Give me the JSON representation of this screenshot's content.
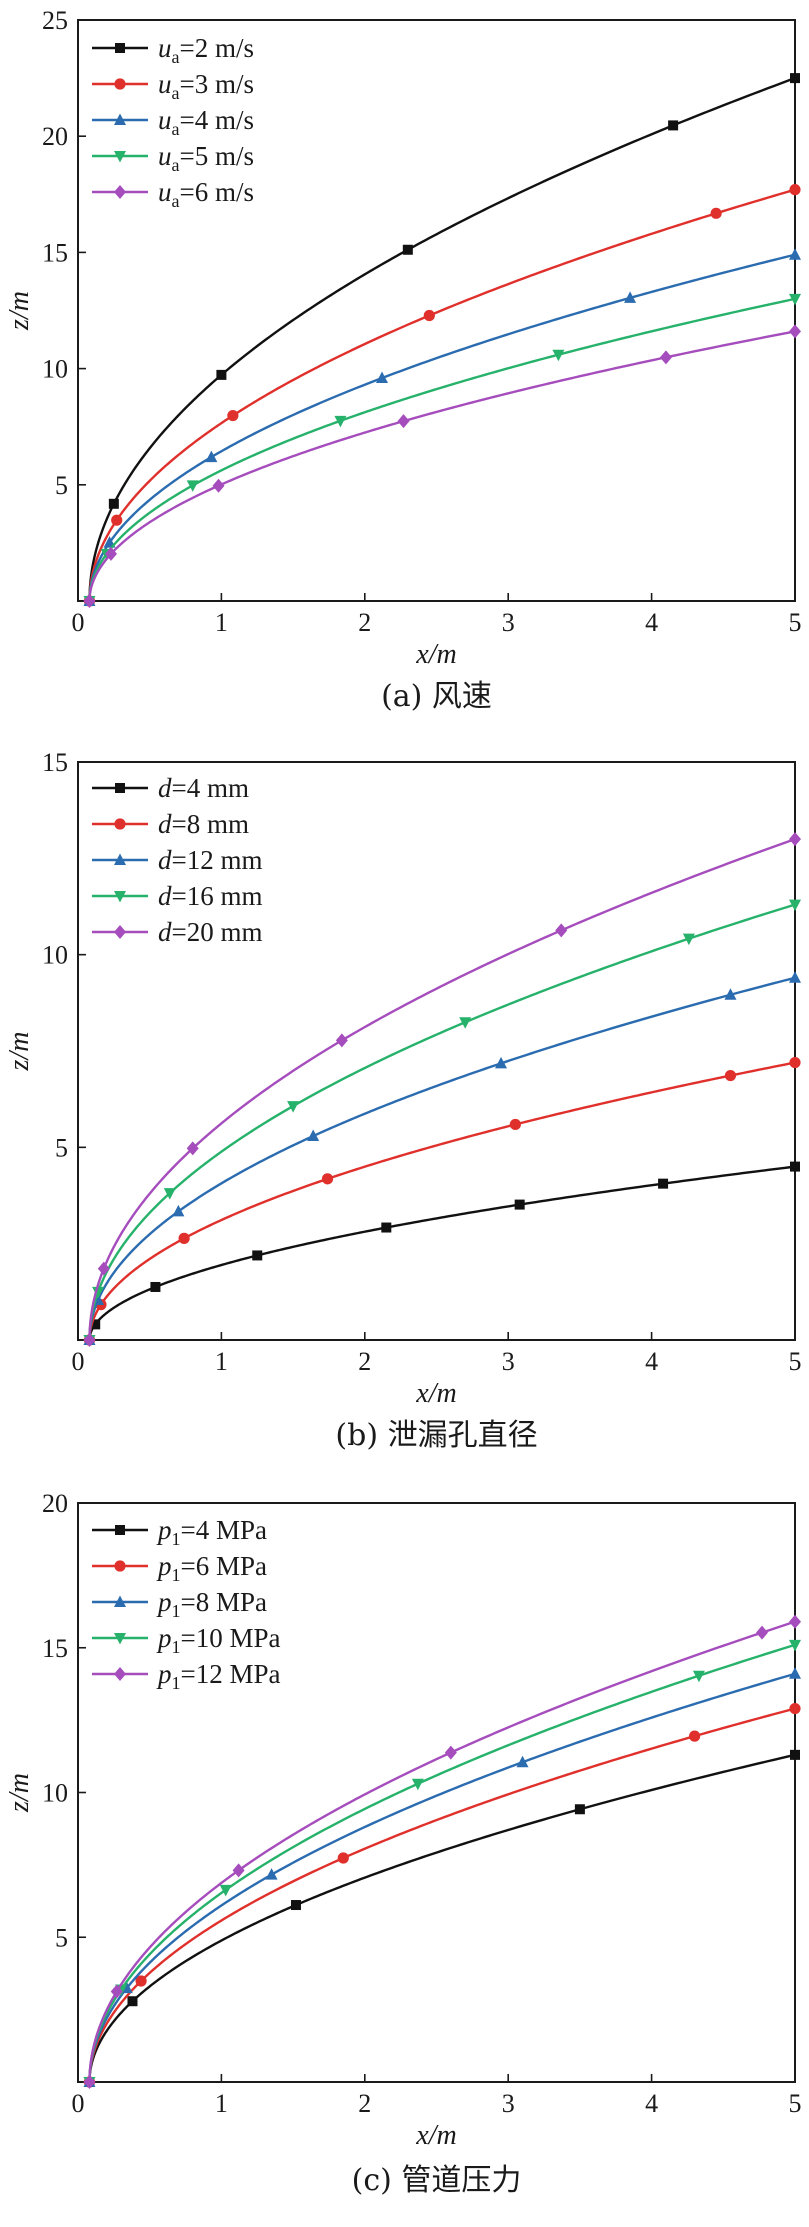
{
  "chart_data": [
    {
      "type": "line",
      "caption": "(a) 风速",
      "xlabel": "x/m",
      "ylabel": "z/m",
      "xlim": [
        0,
        5
      ],
      "ylim": [
        0,
        25
      ],
      "xticks": [
        0,
        1,
        2,
        3,
        4,
        5
      ],
      "yticks": [
        5,
        10,
        15,
        20,
        25
      ],
      "y0_label": "0",
      "legend_position": "top-left",
      "series": [
        {
          "name": "ua=2 m/s",
          "legend": {
            "var": "u",
            "sub": "a",
            "rest": "=2 m/s"
          },
          "color": "#111111",
          "marker": "square",
          "end": 22.5,
          "markers_x": [
            0.25,
            1.0,
            2.3,
            4.15,
            5.0
          ]
        },
        {
          "name": "ua=3 m/s",
          "legend": {
            "var": "u",
            "sub": "a",
            "rest": "=3 m/s"
          },
          "color": "#e0302c",
          "marker": "circle",
          "end": 17.7,
          "markers_x": [
            0.27,
            1.08,
            2.45,
            4.45,
            5.0
          ]
        },
        {
          "name": "ua=4 m/s",
          "legend": {
            "var": "u",
            "sub": "a",
            "rest": "=4 m/s"
          },
          "color": "#2b6cb0",
          "marker": "triangle-up",
          "end": 14.9,
          "markers_x": [
            0.22,
            0.93,
            2.12,
            3.85,
            5.0
          ]
        },
        {
          "name": "ua=5 m/s",
          "legend": {
            "var": "u",
            "sub": "a",
            "rest": "=5 m/s"
          },
          "color": "#27b26b",
          "marker": "triangle-down",
          "end": 13.0,
          "markers_x": [
            0.2,
            0.8,
            1.83,
            3.35,
            5.0
          ]
        },
        {
          "name": "ua=6 m/s",
          "legend": {
            "var": "u",
            "sub": "a",
            "rest": "=6 m/s"
          },
          "color": "#a64dbd",
          "marker": "diamond",
          "end": 11.6,
          "markers_x": [
            0.23,
            0.98,
            2.27,
            4.1,
            5.0
          ]
        }
      ]
    },
    {
      "type": "line",
      "caption": "(b) 泄漏孔直径",
      "xlabel": "x/m",
      "ylabel": "z/m",
      "xlim": [
        0,
        5
      ],
      "ylim": [
        0,
        15
      ],
      "xticks": [
        0,
        1,
        2,
        3,
        4,
        5
      ],
      "yticks": [
        5,
        10,
        15
      ],
      "y0_label": "0",
      "legend_position": "top-left",
      "series": [
        {
          "name": "d=4 mm",
          "legend": {
            "var": "d",
            "sub": "",
            "rest": "=4 mm"
          },
          "color": "#111111",
          "marker": "square",
          "end": 4.5,
          "markers_x": [
            0.12,
            0.54,
            1.25,
            2.15,
            3.08,
            4.08,
            5.0
          ]
        },
        {
          "name": "d=8 mm",
          "legend": {
            "var": "d",
            "sub": "",
            "rest": "=8 mm"
          },
          "color": "#e0302c",
          "marker": "circle",
          "end": 7.2,
          "markers_x": [
            0.16,
            0.74,
            1.74,
            3.05,
            4.55,
            5.0
          ]
        },
        {
          "name": "d=12 mm",
          "legend": {
            "var": "d",
            "sub": "",
            "rest": "=12 mm"
          },
          "color": "#2b6cb0",
          "marker": "triangle-up",
          "end": 9.4,
          "markers_x": [
            0.14,
            0.7,
            1.64,
            2.95,
            4.55,
            5.0
          ]
        },
        {
          "name": "d=16 mm",
          "legend": {
            "var": "d",
            "sub": "",
            "rest": "=16 mm"
          },
          "color": "#27b26b",
          "marker": "triangle-down",
          "end": 11.3,
          "markers_x": [
            0.14,
            0.64,
            1.5,
            2.7,
            4.26,
            5.0
          ]
        },
        {
          "name": "d=20 mm",
          "legend": {
            "var": "d",
            "sub": "",
            "rest": "=20 mm"
          },
          "color": "#a64dbd",
          "marker": "diamond",
          "end": 13.0,
          "markers_x": [
            0.18,
            0.8,
            1.84,
            3.37,
            5.0
          ]
        }
      ]
    },
    {
      "type": "line",
      "caption": "(c) 管道压力",
      "xlabel": "x/m",
      "ylabel": "z/m",
      "xlim": [
        0,
        5
      ],
      "ylim": [
        0,
        20
      ],
      "xticks": [
        0,
        1,
        2,
        3,
        4,
        5
      ],
      "yticks": [
        5,
        10,
        15,
        20
      ],
      "y0_label": "0",
      "legend_position": "top-left",
      "series": [
        {
          "name": "p1=4 MPa",
          "legend": {
            "var": "p",
            "sub": "1",
            "rest": "=4 MPa"
          },
          "color": "#111111",
          "marker": "square",
          "end": 11.3,
          "markers_x": [
            0.38,
            1.52,
            3.5,
            5.0
          ]
        },
        {
          "name": "p1=6 MPa",
          "legend": {
            "var": "p",
            "sub": "1",
            "rest": "=6 MPa"
          },
          "color": "#e0302c",
          "marker": "circle",
          "end": 12.9,
          "markers_x": [
            0.44,
            1.85,
            4.3,
            5.0
          ]
        },
        {
          "name": "p1=8 MPa",
          "legend": {
            "var": "p",
            "sub": "1",
            "rest": "=8 MPa"
          },
          "color": "#2b6cb0",
          "marker": "triangle-up",
          "end": 14.1,
          "markers_x": [
            0.34,
            1.35,
            3.1,
            5.0
          ]
        },
        {
          "name": "p1=10 MPa",
          "legend": {
            "var": "p",
            "sub": "1",
            "rest": "=10 MPa"
          },
          "color": "#27b26b",
          "marker": "triangle-down",
          "end": 15.1,
          "markers_x": [
            0.3,
            1.03,
            2.37,
            4.33,
            5.0
          ]
        },
        {
          "name": "p1=12 MPa",
          "legend": {
            "var": "p",
            "sub": "1",
            "rest": "=12 MPa"
          },
          "color": "#a64dbd",
          "marker": "diamond",
          "end": 15.9,
          "markers_x": [
            0.27,
            1.12,
            2.6,
            4.77,
            5.0
          ]
        }
      ]
    }
  ]
}
